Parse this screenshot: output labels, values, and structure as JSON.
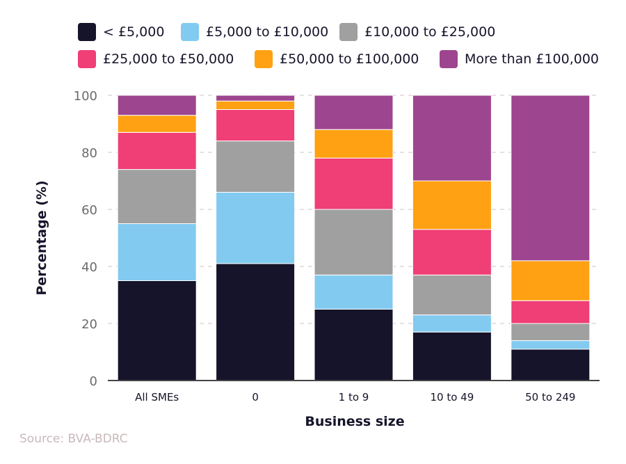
{
  "chart_data": {
    "type": "bar",
    "stacked": true,
    "title": "",
    "xlabel": "Business size",
    "ylabel": "Percentage (%)",
    "ylim": [
      0,
      100
    ],
    "yticks": [
      0,
      20,
      40,
      60,
      80,
      100
    ],
    "grid": true,
    "legend_position": "top",
    "categories": [
      "All SMEs",
      "0",
      "1 to 9",
      "10 to 49",
      "50 to 249"
    ],
    "series": [
      {
        "name": "< £5,000",
        "color": "#15142a",
        "values": [
          35,
          41,
          25,
          17,
          11
        ]
      },
      {
        "name": "£5,000 to £10,000",
        "color": "#82caf0",
        "values": [
          20,
          25,
          12,
          6,
          3
        ]
      },
      {
        "name": "£10,000 to £25,000",
        "color": "#a0a0a0",
        "values": [
          19,
          18,
          23,
          14,
          6
        ]
      },
      {
        "name": "£25,000 to £50,000",
        "color": "#f03e76",
        "values": [
          13,
          11,
          18,
          16,
          8
        ]
      },
      {
        "name": "£50,000 to £100,000",
        "color": "#ffa112",
        "values": [
          6,
          3,
          10,
          17,
          14
        ]
      },
      {
        "name": "More than £100,000",
        "color": "#9d458f",
        "values": [
          7,
          2,
          12,
          30,
          58
        ]
      }
    ]
  },
  "source": "Source: BVA-BDRC"
}
